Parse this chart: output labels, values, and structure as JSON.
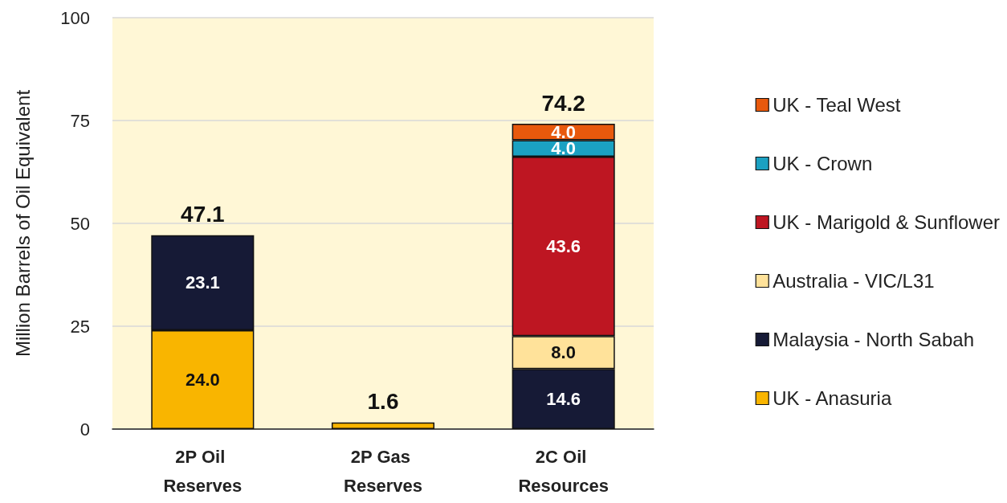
{
  "chart_data": {
    "type": "bar",
    "stacked": true,
    "ylabel": "Million Barrels of Oil Equivalent",
    "categories": [
      "2P Oil Reserves",
      "2P Gas Reserves",
      "2C Oil Resources"
    ],
    "series": [
      {
        "name": "UK - Anasuria",
        "color": "#f9b500",
        "values": [
          24.0,
          1.6,
          null
        ],
        "value_labels": [
          "24.0",
          null,
          null
        ]
      },
      {
        "name": "Malaysia - North Sabah",
        "color": "#161a36",
        "values": [
          23.1,
          null,
          14.6
        ],
        "value_labels": [
          "23.1",
          null,
          "14.6"
        ]
      },
      {
        "name": "Australia - VIC/L31",
        "color": "#ffe29a",
        "values": [
          null,
          null,
          8.0
        ],
        "value_labels": [
          null,
          null,
          "8.0"
        ]
      },
      {
        "name": "UK - Marigold & Sunflower",
        "color": "#be1622",
        "values": [
          null,
          null,
          43.6
        ],
        "value_labels": [
          null,
          null,
          "43.6"
        ]
      },
      {
        "name": "UK - Crown",
        "color": "#1ba1c2",
        "values": [
          null,
          null,
          4.0
        ],
        "value_labels": [
          null,
          null,
          "4.0"
        ]
      },
      {
        "name": "UK - Teal West",
        "color": "#e8590c",
        "values": [
          null,
          null,
          4.0
        ],
        "value_labels": [
          null,
          null,
          "4.0"
        ]
      }
    ],
    "totals": [
      "47.1",
      "1.6",
      "74.2"
    ],
    "ylim": [
      0,
      100
    ],
    "yticks": [
      0,
      25,
      50,
      75,
      100
    ],
    "grid": "y",
    "legend": "right"
  }
}
